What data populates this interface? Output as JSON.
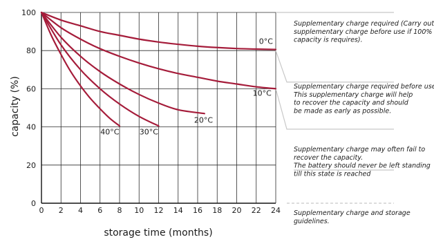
{
  "chart_data": {
    "type": "line",
    "xlabel": "storage time (months)",
    "ylabel": "capacity (%)",
    "xlim": [
      0,
      24
    ],
    "ylim": [
      0,
      100
    ],
    "x_ticks": [
      "0",
      "2",
      "4",
      "6",
      "8",
      "10",
      "12",
      "14",
      "16",
      "18",
      "20",
      "22",
      "24"
    ],
    "y_ticks": [
      "0",
      "20",
      "40",
      "60",
      "80",
      "100"
    ],
    "grid": true,
    "series": [
      {
        "name": "0°C",
        "x": [
          0,
          2,
          4,
          6,
          8,
          10,
          12,
          14,
          16,
          18,
          20,
          22,
          24
        ],
        "y": [
          100,
          96,
          93,
          90,
          88,
          86,
          84.5,
          83.3,
          82.3,
          81.6,
          81.1,
          80.8,
          80.6
        ]
      },
      {
        "name": "10°C",
        "x": [
          0,
          2,
          4,
          6,
          8,
          10,
          12,
          14,
          16,
          18,
          20,
          22,
          24
        ],
        "y": [
          100,
          92,
          86,
          81,
          77,
          73.5,
          70.5,
          68,
          66,
          64,
          62.5,
          61,
          60
        ]
      },
      {
        "name": "20°C",
        "x": [
          0,
          2,
          4,
          6,
          8,
          10,
          12,
          14,
          16.7
        ],
        "y": [
          100,
          87,
          77,
          69,
          62.5,
          57,
          52.5,
          49,
          47
        ]
      },
      {
        "name": "30°C",
        "x": [
          0,
          2,
          4,
          6,
          8,
          10,
          12
        ],
        "y": [
          100,
          83,
          70,
          60,
          52,
          45.5,
          40.5
        ]
      },
      {
        "name": "40°C",
        "x": [
          0,
          1,
          2,
          3,
          4,
          5,
          6,
          7,
          8
        ],
        "y": [
          100,
          88,
          78,
          69,
          61.5,
          55,
          49.5,
          44.5,
          40.5
        ]
      }
    ],
    "curve_labels": [
      {
        "text": "0°C",
        "x": 23.0,
        "y": 83.6,
        "anchor": "middle"
      },
      {
        "text": "10°C",
        "x": 22.6,
        "y": 56.3,
        "anchor": "middle"
      },
      {
        "text": "20°C",
        "x": 16.6,
        "y": 42.3,
        "anchor": "middle"
      },
      {
        "text": "30°C",
        "x": 11.0,
        "y": 36.0,
        "anchor": "middle"
      },
      {
        "text": "40°C",
        "x": 7.0,
        "y": 36.0,
        "anchor": "middle"
      }
    ],
    "colors": {
      "curve": "#a51c3a",
      "grid": "#2b2b2b",
      "zone_line": "#c8c8c8"
    }
  },
  "annotations": [
    {
      "lines": [
        "Supplementary charge required (Carry out",
        "supplementary charge before use if 100%",
        "capacity is requires)."
      ]
    },
    {
      "lines": [
        "Supplementary charge required before use.",
        "This supplementary charge will help",
        "to recover the capacity and should",
        "be made as early as possible."
      ]
    },
    {
      "lines": [
        "Supplementary charge may often fail to",
        "recover the capacity.",
        "The battery should never be left standing",
        "till this state is reached"
      ]
    },
    {
      "lines": [
        "Supplementary charge and storage",
        "guidelines."
      ]
    }
  ]
}
